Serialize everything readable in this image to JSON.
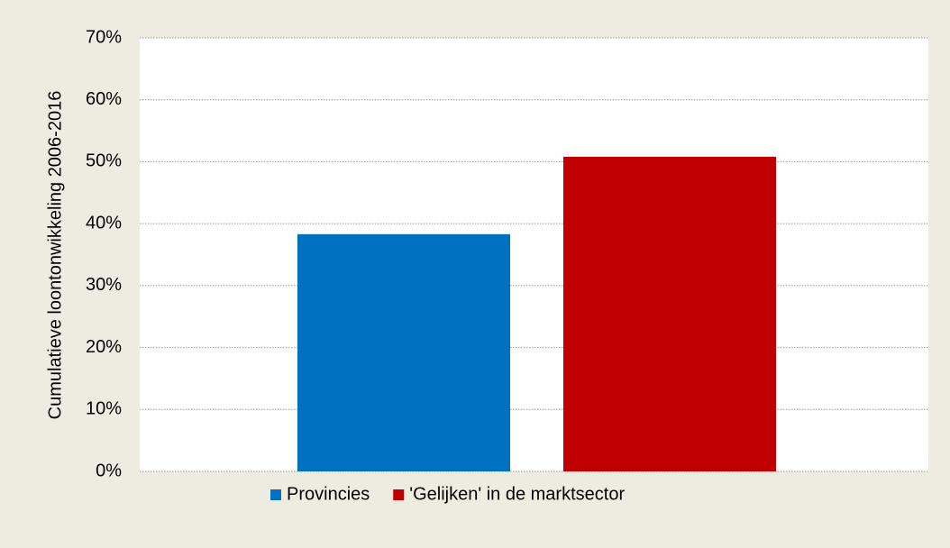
{
  "chart_data": {
    "type": "bar",
    "y_label": "Cumulatieve loontonwikkeling 2006-2016",
    "categories": [
      null
    ],
    "series": [
      {
        "name": "Provincies",
        "color": "#0070c0",
        "values": [
          38.3
        ]
      },
      {
        "name": "'Gelijken' in de marktsector",
        "color": "#c00000",
        "values": [
          50.8
        ]
      }
    ],
    "ylim": [
      0,
      70
    ],
    "yticks": [
      {
        "value": 0,
        "label": "0%"
      },
      {
        "value": 10,
        "label": "10%"
      },
      {
        "value": 20,
        "label": "20%"
      },
      {
        "value": 30,
        "label": "30%"
      },
      {
        "value": 40,
        "label": "40%"
      },
      {
        "value": 50,
        "label": "50%"
      },
      {
        "value": 60,
        "label": "60%"
      },
      {
        "value": 70,
        "label": "70%"
      }
    ],
    "grid": true,
    "legend": "bottom"
  }
}
